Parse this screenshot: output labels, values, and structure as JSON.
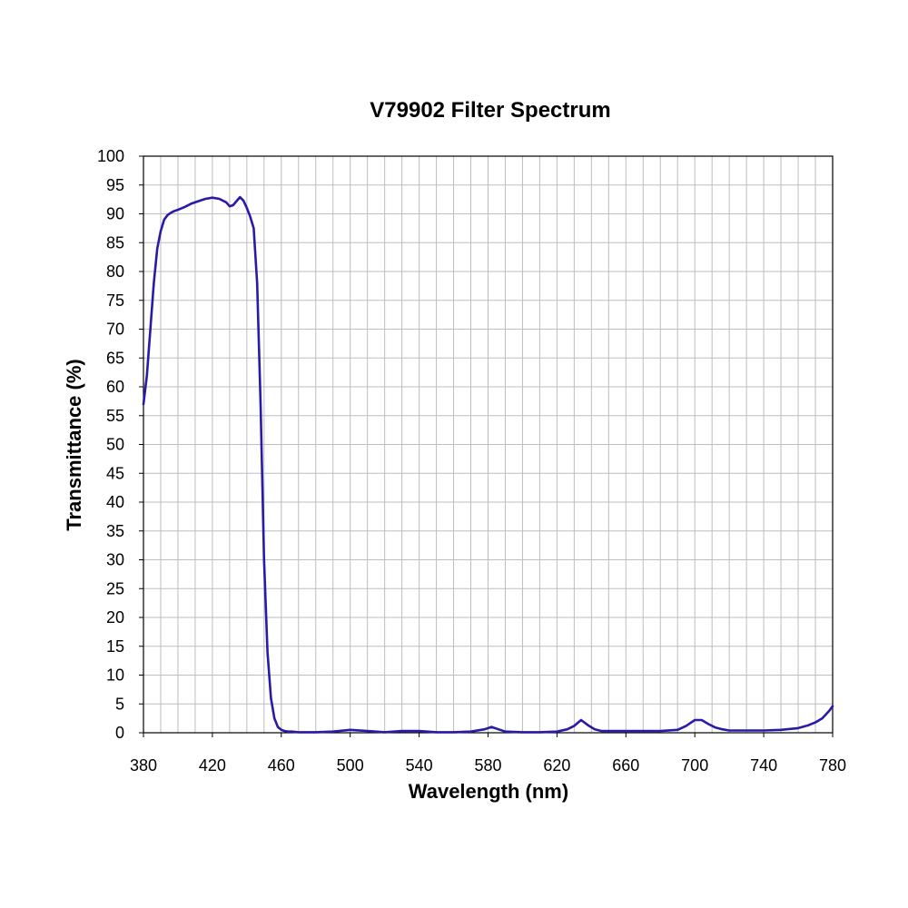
{
  "chart_data": {
    "type": "line",
    "title": "V79902 Filter  Spectrum",
    "xlabel": "Wavelength (nm)",
    "ylabel": "Transmittance (%)",
    "xlim": [
      380,
      780
    ],
    "ylim": [
      0,
      100
    ],
    "x_ticks": [
      "380",
      "420",
      "460",
      "500",
      "540",
      "580",
      "620",
      "660",
      "700",
      "740",
      "780"
    ],
    "y_ticks": [
      "0",
      "5",
      "10",
      "15",
      "20",
      "25",
      "30",
      "35",
      "40",
      "45",
      "50",
      "55",
      "60",
      "65",
      "70",
      "75",
      "80",
      "85",
      "90",
      "95",
      "100"
    ],
    "grid": true,
    "line_color": "#2a1aa8",
    "series": [
      {
        "x": [
          380,
          382,
          384,
          386,
          388,
          390,
          392,
          394,
          396,
          398,
          400,
          404,
          408,
          412,
          416,
          420,
          424,
          428,
          430,
          432,
          434,
          436,
          438,
          440,
          442,
          444,
          446,
          448,
          450,
          452,
          454,
          456,
          458,
          460,
          462,
          464,
          466,
          470,
          480,
          490,
          500,
          510,
          520,
          530,
          540,
          550,
          560,
          570,
          578,
          582,
          586,
          590,
          600,
          610,
          620,
          626,
          630,
          634,
          638,
          642,
          646,
          650,
          660,
          670,
          680,
          690,
          695,
          700,
          704,
          708,
          712,
          716,
          720,
          730,
          740,
          750,
          760,
          766,
          770,
          774,
          778,
          780
        ],
        "y": [
          57,
          62,
          70,
          78,
          84,
          87,
          89,
          89.8,
          90.2,
          90.5,
          90.7,
          91.2,
          91.8,
          92.2,
          92.6,
          92.8,
          92.6,
          92.0,
          91.3,
          91.5,
          92.2,
          92.9,
          92.3,
          91.0,
          89.5,
          87.5,
          78,
          57,
          30,
          14,
          6,
          2.5,
          1.0,
          0.5,
          0.3,
          0.2,
          0.2,
          0.1,
          0.1,
          0.2,
          0.5,
          0.3,
          0.1,
          0.3,
          0.3,
          0.1,
          0.1,
          0.2,
          0.6,
          1.0,
          0.6,
          0.2,
          0.1,
          0.1,
          0.2,
          0.6,
          1.2,
          2.2,
          1.3,
          0.6,
          0.3,
          0.3,
          0.3,
          0.3,
          0.3,
          0.5,
          1.2,
          2.2,
          2.2,
          1.5,
          0.9,
          0.6,
          0.4,
          0.4,
          0.4,
          0.5,
          0.8,
          1.3,
          1.8,
          2.5,
          3.8,
          4.6
        ]
      }
    ]
  }
}
